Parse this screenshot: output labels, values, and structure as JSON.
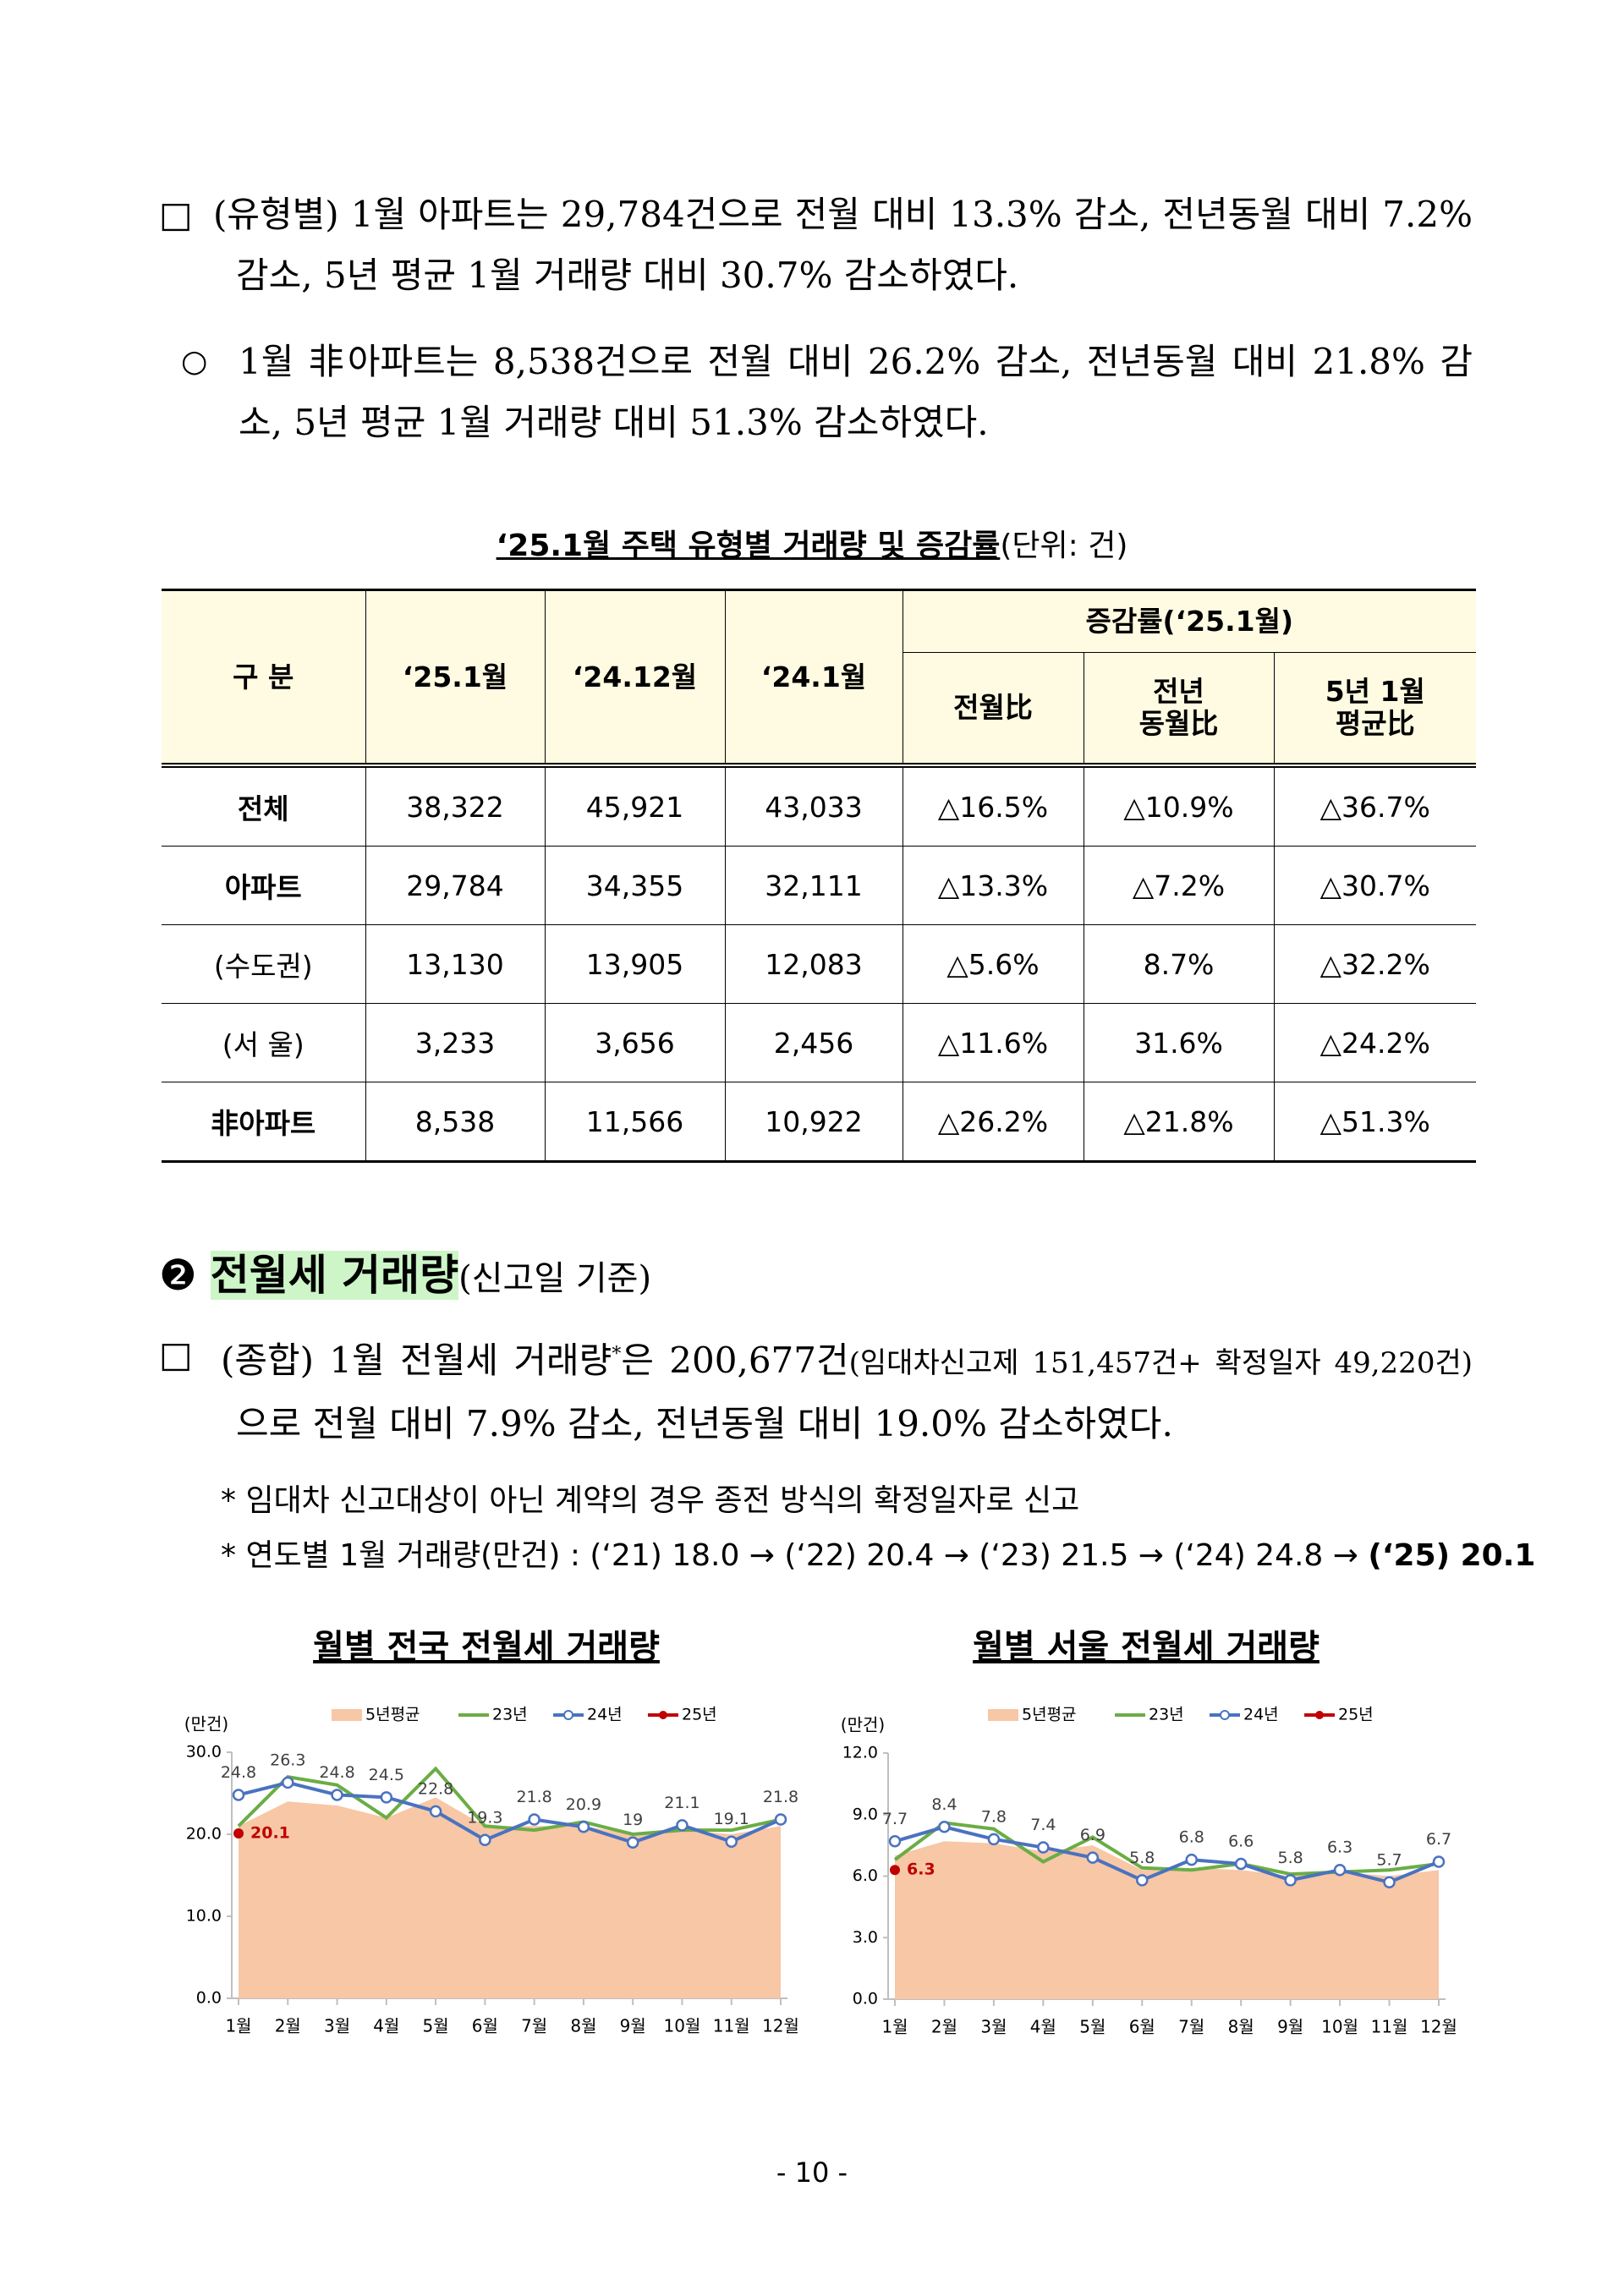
{
  "para1": {
    "bullet": "□",
    "text": "(유형별) 1월 아파트는 29,784건으로 전월 대비 13.3% 감소, 전년동월 대비 7.2% 감소, 5년 평균 1월 거래량 대비 30.7% 감소하였다."
  },
  "para2": {
    "bullet": "○",
    "text": "1월 非아파트는 8,538건으로 전월 대비 26.2% 감소, 전년동월 대비 21.8% 감소, 5년 평균 1월 거래량 대비 51.3% 감소하였다."
  },
  "table": {
    "caption": "‘25.1월 주택 유형별 거래량 및 증감률",
    "unit": "(단위: 건)",
    "header": [
      "구 분",
      "‘25.1월",
      "‘24.12월",
      "‘24.1월",
      "증감률(‘25.1월)"
    ],
    "subheader": [
      "전월比",
      "전년\n동월比",
      "5년 1월\n평균比"
    ],
    "rows": [
      [
        "전체",
        "38,322",
        "45,921",
        "43,033",
        "△16.5%",
        "△10.9%",
        "△36.7%"
      ],
      [
        "아파트",
        "29,784",
        "34,355",
        "32,111",
        "△13.3%",
        "△7.2%",
        "△30.7%"
      ],
      [
        "(수도권)",
        "13,130",
        "13,905",
        "12,083",
        "△5.6%",
        "8.7%",
        "△32.2%"
      ],
      [
        "(서   울)",
        "3,233",
        "3,656",
        "2,456",
        "△11.6%",
        "31.6%",
        "△24.2%"
      ],
      [
        "非아파트",
        "8,538",
        "11,566",
        "10,922",
        "△26.2%",
        "△21.8%",
        "△51.3%"
      ]
    ]
  },
  "section": {
    "number": "❷",
    "title": "전월세 거래량",
    "note": "(신고일 기준)"
  },
  "para3": {
    "bullet": "□",
    "parts": [
      "(종합) 1월 전월세 거래량",
      "*",
      "은 200,677건",
      "(임대차신고제 151,457건+ 확정일자 49,220건)",
      "으로 전월 대비 7.9% 감소, 전년동월 대비 19.0% 감소하였다."
    ]
  },
  "notes": [
    {
      "text": "* 임대차 신고대상이 아닌 계약의 경우 종전 방식의 확정일자로 신고"
    },
    {
      "text": "* 연도별 1월 거래량(만건) : (‘21) 18.0 → (‘22) 20.4 → (‘23) 21.5 → (‘24) 24.8 →",
      "bold": "(‘25) 20.1"
    }
  ],
  "chart_data": [
    {
      "type": "line",
      "title": "월별 전국 전월세 거래량",
      "y_unit": "(만건)",
      "categories": [
        "1월",
        "2월",
        "3월",
        "4월",
        "5월",
        "6월",
        "7월",
        "8월",
        "9월",
        "10월",
        "11월",
        "12월"
      ],
      "ylim": [
        0,
        30
      ],
      "yticks": [
        {
          "value": 0,
          "label": "0.0"
        },
        {
          "value": 10,
          "label": "10.0"
        },
        {
          "value": 20,
          "label": "20.0"
        },
        {
          "value": 30,
          "label": "30.0"
        }
      ],
      "series": [
        {
          "name": "5년평균",
          "kind": "area",
          "color": "#f7c7a6",
          "values": [
            21,
            24,
            23.5,
            22,
            24.5,
            21,
            21,
            21,
            20,
            20.5,
            20,
            21
          ]
        },
        {
          "name": "23년",
          "kind": "line",
          "color": "#6aad45",
          "values": [
            21,
            27,
            26,
            22,
            28,
            21,
            20.5,
            21.5,
            20,
            20.5,
            20.5,
            21.8
          ]
        },
        {
          "name": "24년",
          "kind": "line",
          "color": "#4a72c0",
          "markers": true,
          "data_labels": true,
          "values": [
            24.8,
            26.3,
            24.8,
            24.5,
            22.8,
            19.3,
            21.8,
            20.9,
            19.0,
            21.1,
            19.1,
            21.8
          ]
        },
        {
          "name": "25년",
          "kind": "point",
          "color": "#c00000",
          "data_labels": true,
          "values": [
            20.1,
            null,
            null,
            null,
            null,
            null,
            null,
            null,
            null,
            null,
            null,
            null
          ]
        }
      ]
    },
    {
      "type": "line",
      "title": "월별 서울 전월세 거래량",
      "y_unit": "(만건)",
      "categories": [
        "1월",
        "2월",
        "3월",
        "4월",
        "5월",
        "6월",
        "7월",
        "8월",
        "9월",
        "10월",
        "11월",
        "12월"
      ],
      "ylim": [
        0,
        12
      ],
      "yticks": [
        {
          "value": 0,
          "label": "0.0"
        },
        {
          "value": 3,
          "label": "3.0"
        },
        {
          "value": 6,
          "label": "6.0"
        },
        {
          "value": 9,
          "label": "9.0"
        },
        {
          "value": 12,
          "label": "12.0"
        }
      ],
      "series": [
        {
          "name": "5년평균",
          "kind": "area",
          "color": "#f7c7a6",
          "values": [
            7,
            7.7,
            7.6,
            7.2,
            7.5,
            6.3,
            6.4,
            6.3,
            6,
            6.2,
            6,
            6.3
          ]
        },
        {
          "name": "23년",
          "kind": "line",
          "color": "#6aad45",
          "values": [
            6.8,
            8.6,
            8.3,
            6.7,
            7.9,
            6.4,
            6.3,
            6.6,
            6.1,
            6.2,
            6.3,
            6.6
          ]
        },
        {
          "name": "24년",
          "kind": "line",
          "color": "#4a72c0",
          "markers": true,
          "data_labels": true,
          "values": [
            7.7,
            8.4,
            7.8,
            7.4,
            6.9,
            5.8,
            6.8,
            6.6,
            5.8,
            6.3,
            5.7,
            6.7
          ]
        },
        {
          "name": "25년",
          "kind": "point",
          "color": "#c00000",
          "data_labels": true,
          "values": [
            6.3,
            null,
            null,
            null,
            null,
            null,
            null,
            null,
            null,
            null,
            null,
            null
          ]
        }
      ]
    }
  ],
  "page_number": "- 10 -"
}
